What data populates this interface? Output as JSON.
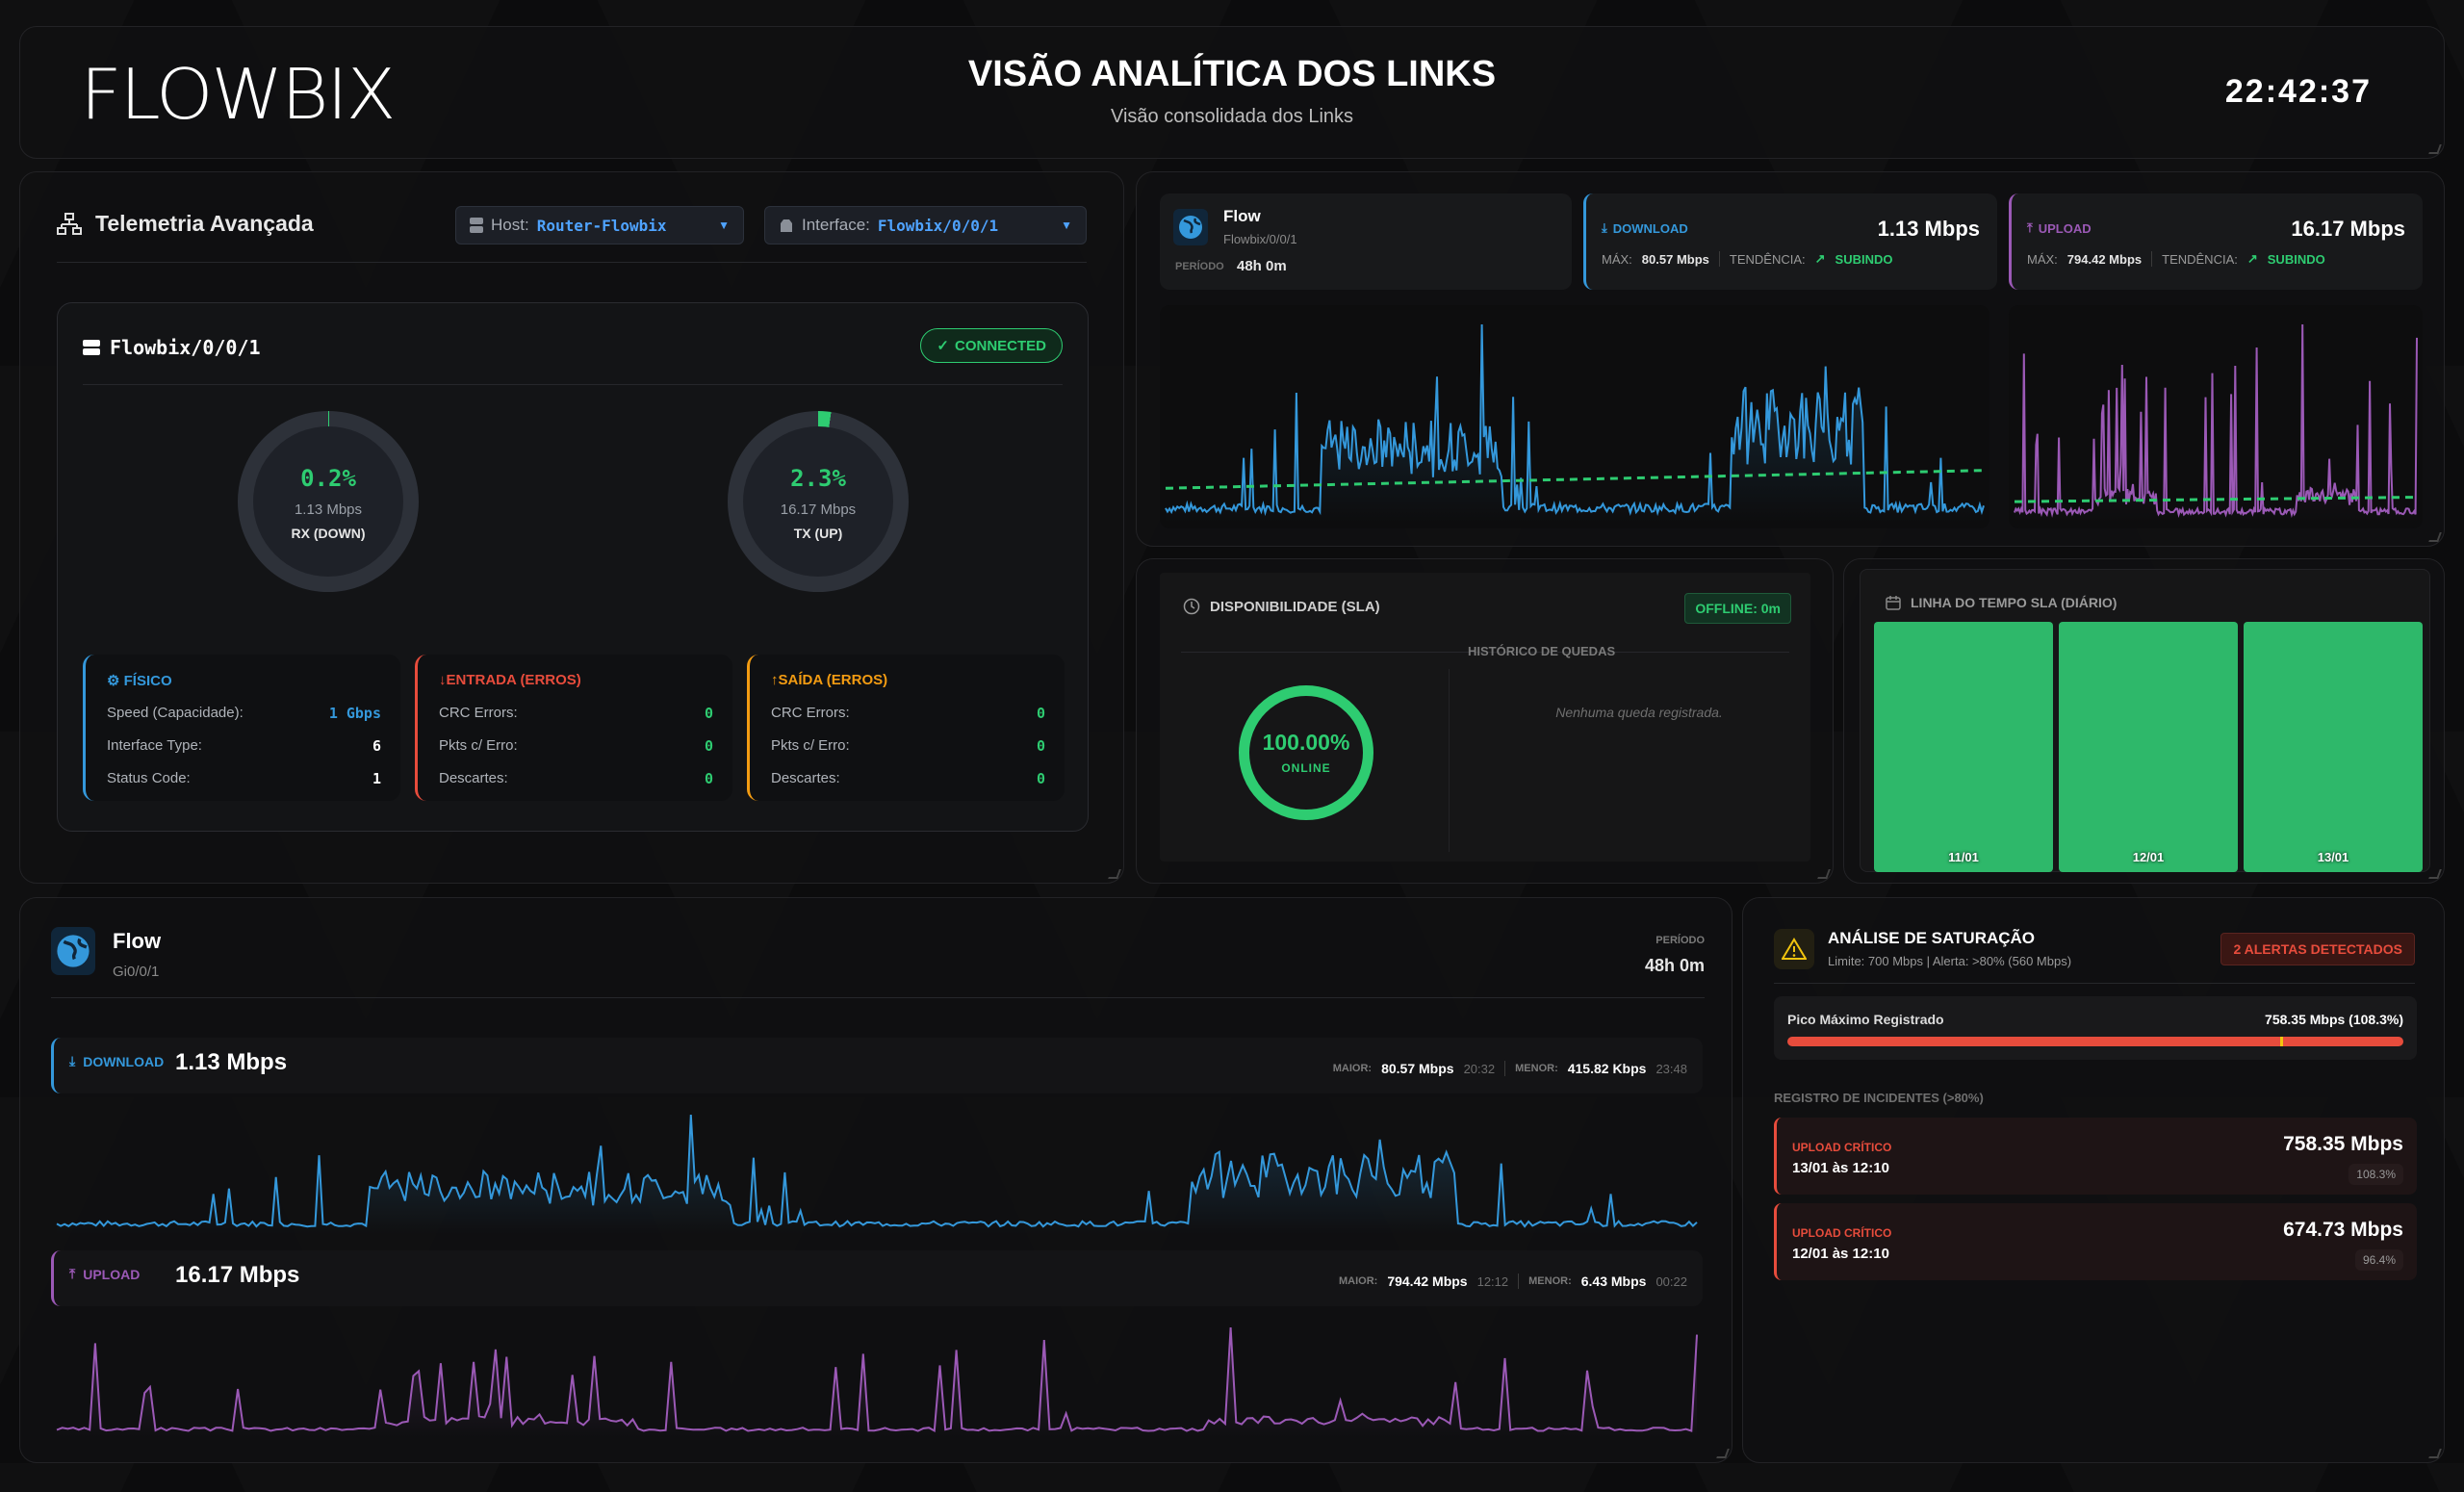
{
  "header": {
    "logo": "FLOWBIX",
    "title": "VISÃO ANALÍTICA DOS LINKS",
    "subtitle": "Visão consolidada dos Links",
    "clock": "22:42:37"
  },
  "telemetry": {
    "title": "Telemetria Avançada",
    "host": {
      "label": "Host:",
      "value": "Router-Flowbix"
    },
    "interface": {
      "label": "Interface:",
      "value": "Flowbix/0/0/1"
    },
    "card": {
      "name": "Flowbix/0/0/1",
      "status": "CONNECTED",
      "rx": {
        "pct": "0.2%",
        "rate": "1.13 Mbps",
        "label": "RX (DOWN)"
      },
      "tx": {
        "pct": "2.3%",
        "rate": "16.17 Mbps",
        "label": "TX (UP)"
      },
      "fisico": {
        "title": "FÍSICO",
        "rows": [
          {
            "k": "Speed (Capacidade):",
            "v": "1 Gbps"
          },
          {
            "k": "Interface Type:",
            "v": "6"
          },
          {
            "k": "Status Code:",
            "v": "1"
          }
        ]
      },
      "entrada": {
        "title": "ENTRADA (ERROS)",
        "rows": [
          {
            "k": "CRC Errors:",
            "v": "0"
          },
          {
            "k": "Pkts c/ Erro:",
            "v": "0"
          },
          {
            "k": "Descartes:",
            "v": "0"
          }
        ]
      },
      "saida": {
        "title": "SAÍDA (ERROS)",
        "rows": [
          {
            "k": "CRC Errors:",
            "v": "0"
          },
          {
            "k": "Pkts c/ Erro:",
            "v": "0"
          },
          {
            "k": "Descartes:",
            "v": "0"
          }
        ]
      }
    }
  },
  "flow_summary": {
    "name": "Flow",
    "iface": "Flowbix/0/0/1",
    "period_label": "PERÍODO",
    "period": "48h 0m",
    "download": {
      "label": "DOWNLOAD",
      "value": "1.13 Mbps",
      "max_label": "MÁX:",
      "max": "80.57 Mbps",
      "trend_label": "TENDÊNCIA:",
      "trend": "SUBINDO"
    },
    "upload": {
      "label": "UPLOAD",
      "value": "16.17 Mbps",
      "max_label": "MÁX:",
      "max": "794.42 Mbps",
      "trend_label": "TENDÊNCIA:",
      "trend": "SUBINDO"
    }
  },
  "sla": {
    "title": "DISPONIBILIDADE (SLA)",
    "offline": "OFFLINE:  0m",
    "pct": "100.00%",
    "state": "ONLINE",
    "history_title": "HISTÓRICO DE QUEDAS",
    "history_empty": "Nenhuma queda registrada."
  },
  "timeline": {
    "title": "LINHA DO TEMPO SLA (DIÁRIO)",
    "days": [
      "11/01",
      "12/01",
      "13/01"
    ]
  },
  "flow_detail": {
    "name": "Flow",
    "iface": "Gi0/0/1",
    "period_label": "PERÍODO",
    "period": "48h 0m",
    "download": {
      "label": "DOWNLOAD",
      "value": "1.13 Mbps",
      "max_label": "MAIOR:",
      "max": "80.57 Mbps",
      "max_time": "20:32",
      "min_label": "MENOR:",
      "min": "415.82 Kbps",
      "min_time": "23:48"
    },
    "upload": {
      "label": "UPLOAD",
      "value": "16.17 Mbps",
      "max_label": "MAIOR:",
      "max": "794.42 Mbps",
      "max_time": "12:12",
      "min_label": "MENOR:",
      "min": "6.43 Mbps",
      "min_time": "00:22"
    }
  },
  "saturation": {
    "title": "ANÁLISE DE SATURAÇÃO",
    "subtitle": "Limite: 700 Mbps | Alerta: >80% (560 Mbps)",
    "alerts": "2 ALERTAS DETECTADOS",
    "peak_label": "Pico Máximo Registrado",
    "peak_value": "758.35 Mbps (108.3%)",
    "incidents_title": "REGISTRO DE INCIDENTES (>80%)",
    "incidents": [
      {
        "type": "UPLOAD CRÍTICO",
        "when": "13/01 às 12:10",
        "value": "758.35 Mbps",
        "pct": "108.3%"
      },
      {
        "type": "UPLOAD CRÍTICO",
        "when": "12/01 às 12:10",
        "value": "674.73 Mbps",
        "pct": "96.4%"
      }
    ]
  },
  "colors": {
    "download": "#3498db",
    "upload": "#9b59b6",
    "ok": "#2ecc71",
    "alert": "#e74c3c",
    "warn": "#f39c12"
  }
}
